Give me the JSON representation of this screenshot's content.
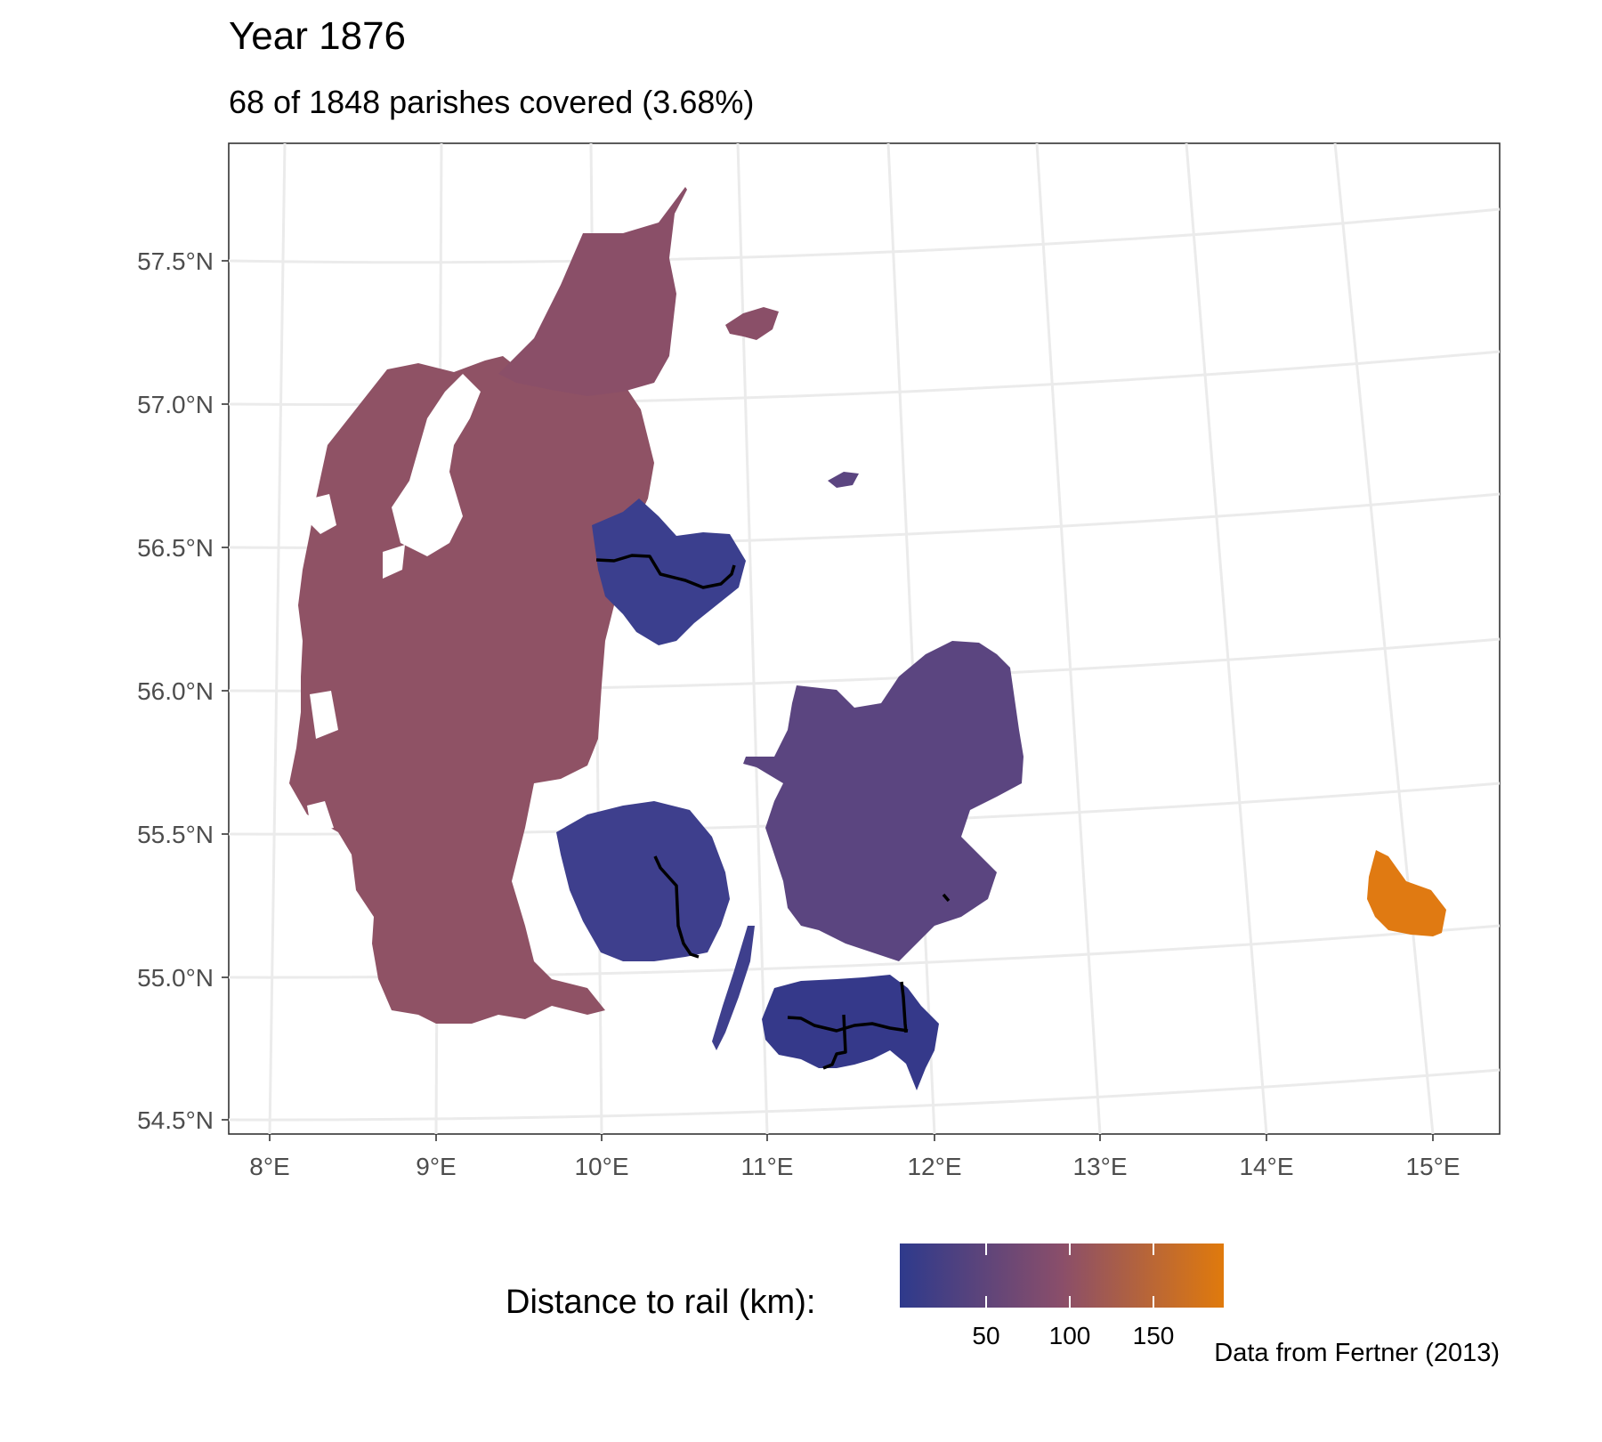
{
  "title": "Year 1876",
  "subtitle": "68 of 1848 parishes covered (3.68%)",
  "caption": "Data from Fertner (2013)",
  "legend": {
    "title": "Distance to rail (km):",
    "ticks": [
      "50",
      "100",
      "150"
    ],
    "color_low": "#2e3a8c",
    "color_mid": "#8a4e6a",
    "color_high": "#e07a0c"
  },
  "axes": {
    "y_labels": [
      "57.5°N",
      "57.0°N",
      "56.5°N",
      "56.0°N",
      "55.5°N",
      "55.0°N",
      "54.5°N"
    ],
    "x_labels": [
      "8°E",
      "9°E",
      "10°E",
      "11°E",
      "12°E",
      "13°E",
      "14°E",
      "15°E"
    ]
  },
  "regions": [
    {
      "name": "Jutland",
      "fill": "#8f5265"
    },
    {
      "name": "Vendsyssel",
      "fill": "#8a4f68"
    },
    {
      "name": "Djursland",
      "fill": "#3b3f8e"
    },
    {
      "name": "Funen",
      "fill": "#3e3f8d"
    },
    {
      "name": "Zealand",
      "fill": "#5b4580"
    },
    {
      "name": "Lolland-Falster",
      "fill": "#35398a"
    },
    {
      "name": "Bornholm",
      "fill": "#e07a12"
    }
  ],
  "rail_color": "#000000"
}
